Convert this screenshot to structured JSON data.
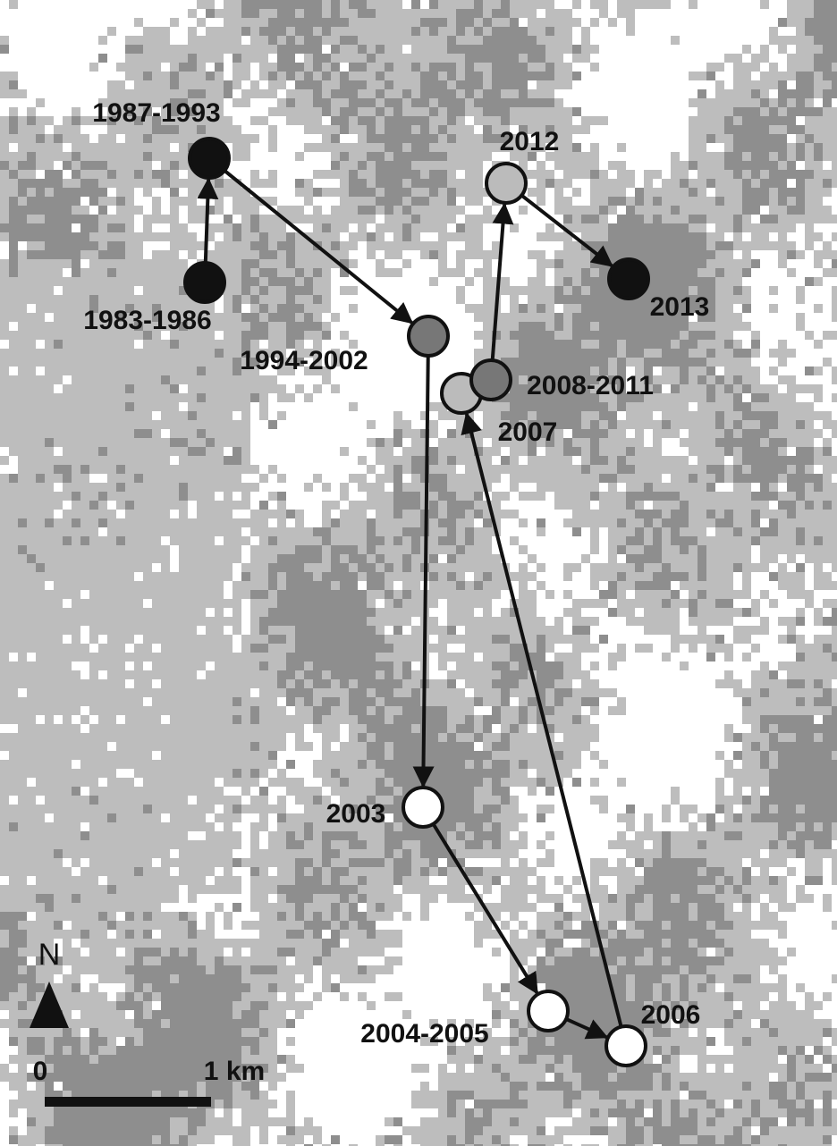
{
  "points": [
    {
      "label": "1983-1986"
    },
    {
      "label": "1987-1993"
    },
    {
      "label": "1994-2002"
    },
    {
      "label": "2003"
    },
    {
      "label": "2004-2005"
    },
    {
      "label": "2006"
    },
    {
      "label": "2007"
    },
    {
      "label": "2008-2011"
    },
    {
      "label": "2012"
    },
    {
      "label": "2013"
    }
  ],
  "north_label": "N",
  "scale": {
    "start": "0",
    "end": "1 km"
  }
}
